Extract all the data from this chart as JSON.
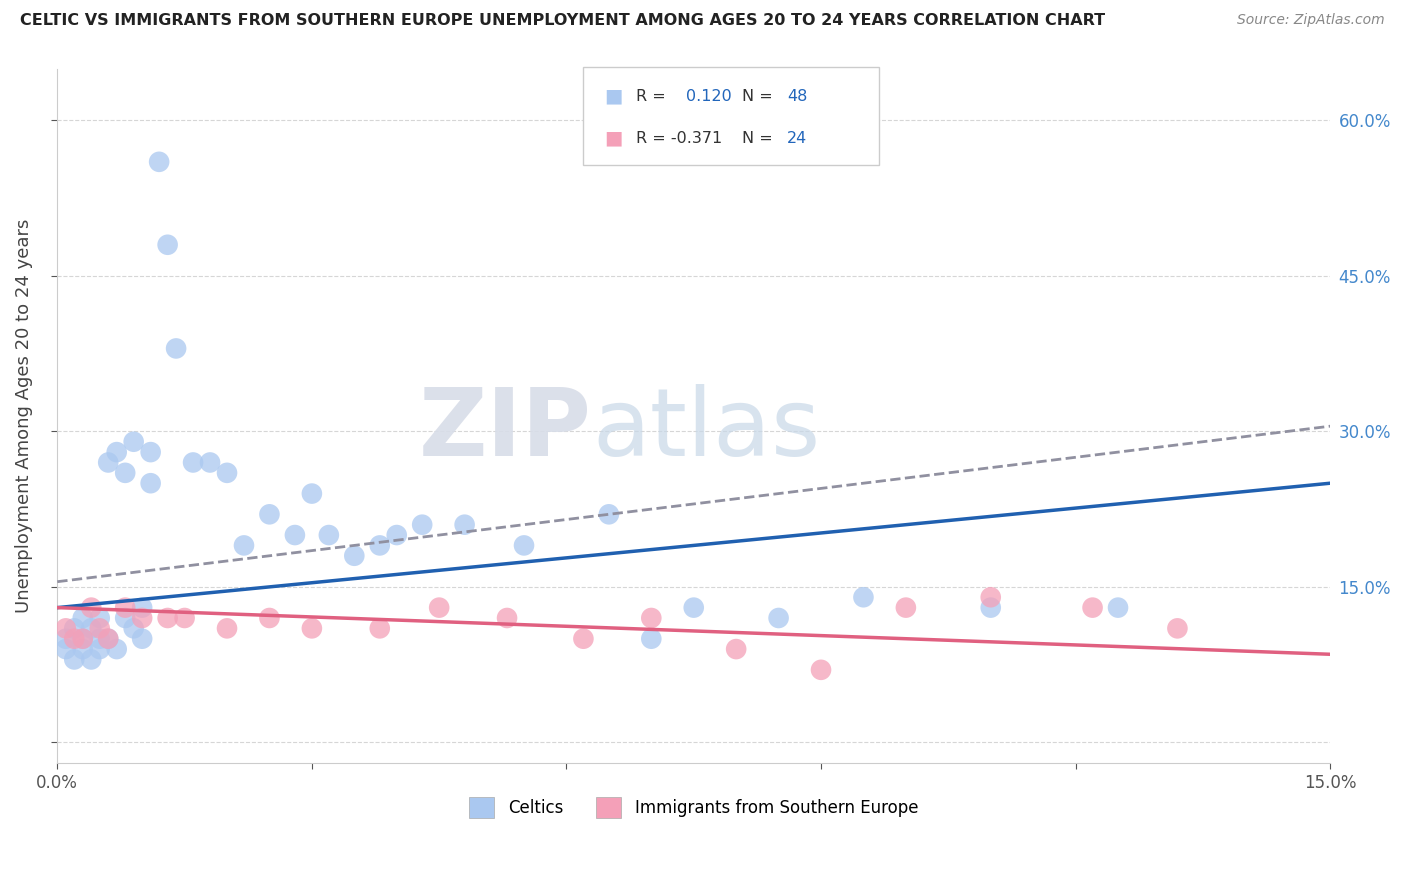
{
  "title": "CELTIC VS IMMIGRANTS FROM SOUTHERN EUROPE UNEMPLOYMENT AMONG AGES 20 TO 24 YEARS CORRELATION CHART",
  "source": "Source: ZipAtlas.com",
  "ylabel": "Unemployment Among Ages 20 to 24 years",
  "xlim": [
    0.0,
    0.15
  ],
  "ylim": [
    -0.02,
    0.65
  ],
  "xticks": [
    0.0,
    0.03,
    0.06,
    0.09,
    0.12,
    0.15
  ],
  "xticklabels": [
    "0.0%",
    "",
    "",
    "",
    "",
    "15.0%"
  ],
  "yticks": [
    0.0,
    0.15,
    0.3,
    0.45,
    0.6
  ],
  "yticklabels_left": [
    "",
    "",
    "",
    "",
    ""
  ],
  "yticklabels_right": [
    "",
    "15.0%",
    "30.0%",
    "45.0%",
    "60.0%"
  ],
  "celtics_color": "#aac8f0",
  "immigrants_color": "#f4a0b8",
  "celtics_line_color": "#2060b0",
  "immigrants_line_color": "#e06080",
  "dashed_line_color": "#9090a0",
  "background_color": "#ffffff",
  "watermark_zip": "ZIP",
  "watermark_atlas": "atlas",
  "celtics_x": [
    0.001,
    0.001,
    0.002,
    0.002,
    0.003,
    0.003,
    0.003,
    0.004,
    0.004,
    0.005,
    0.005,
    0.005,
    0.006,
    0.006,
    0.007,
    0.007,
    0.008,
    0.008,
    0.009,
    0.009,
    0.01,
    0.01,
    0.011,
    0.011,
    0.012,
    0.013,
    0.014,
    0.016,
    0.018,
    0.02,
    0.022,
    0.025,
    0.028,
    0.03,
    0.032,
    0.035,
    0.038,
    0.04,
    0.043,
    0.048,
    0.055,
    0.065,
    0.07,
    0.075,
    0.085,
    0.095,
    0.11,
    0.125
  ],
  "celtics_y": [
    0.09,
    0.1,
    0.11,
    0.08,
    0.1,
    0.12,
    0.09,
    0.11,
    0.08,
    0.1,
    0.12,
    0.09,
    0.27,
    0.1,
    0.28,
    0.09,
    0.26,
    0.12,
    0.29,
    0.11,
    0.13,
    0.1,
    0.25,
    0.28,
    0.56,
    0.48,
    0.38,
    0.27,
    0.27,
    0.26,
    0.19,
    0.22,
    0.2,
    0.24,
    0.2,
    0.18,
    0.19,
    0.2,
    0.21,
    0.21,
    0.19,
    0.22,
    0.1,
    0.13,
    0.12,
    0.14,
    0.13,
    0.13
  ],
  "immigrants_x": [
    0.001,
    0.002,
    0.003,
    0.004,
    0.005,
    0.006,
    0.008,
    0.01,
    0.013,
    0.015,
    0.02,
    0.025,
    0.03,
    0.038,
    0.045,
    0.053,
    0.062,
    0.07,
    0.08,
    0.09,
    0.1,
    0.11,
    0.122,
    0.132
  ],
  "immigrants_y": [
    0.11,
    0.1,
    0.1,
    0.13,
    0.11,
    0.1,
    0.13,
    0.12,
    0.12,
    0.12,
    0.11,
    0.12,
    0.11,
    0.11,
    0.13,
    0.12,
    0.1,
    0.12,
    0.09,
    0.07,
    0.13,
    0.14,
    0.13,
    0.11
  ],
  "celtic_trend_x0": 0.0,
  "celtic_trend_y0": 0.13,
  "celtic_trend_x1": 0.15,
  "celtic_trend_y1": 0.25,
  "immigrant_trend_x0": 0.0,
  "immigrant_trend_y0": 0.13,
  "immigrant_trend_x1": 0.15,
  "immigrant_trend_y1": 0.085,
  "dashed_trend_x0": 0.0,
  "dashed_trend_y0": 0.155,
  "dashed_trend_x1": 0.15,
  "dashed_trend_y1": 0.305
}
